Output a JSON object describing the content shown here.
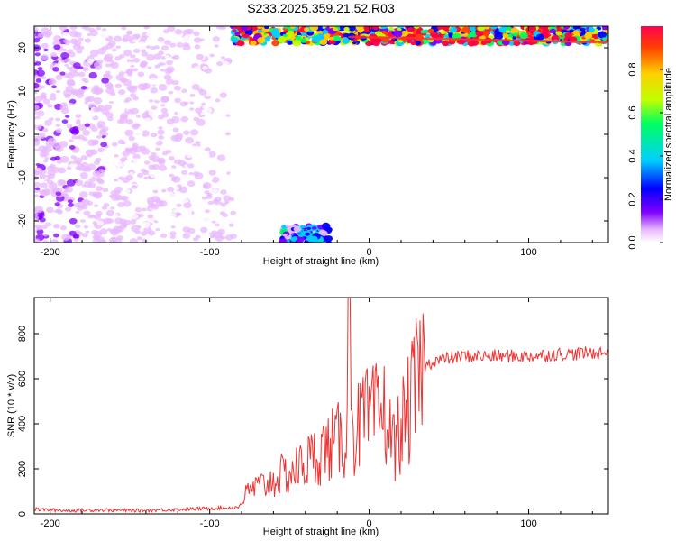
{
  "figure_title": "S233.2025.359.21.52.R03",
  "chart_data": [
    {
      "type": "heatmap",
      "title": "",
      "xlabel": "Height of straight line (km)",
      "ylabel": "Frequency (Hz)",
      "xlim": [
        -210,
        150
      ],
      "ylim": [
        -25,
        25
      ],
      "xticks": [
        -200,
        -100,
        0,
        100
      ],
      "yticks": [
        -20,
        -10,
        0,
        10,
        20
      ],
      "colorbar": {
        "label": "Normalized spectral amplitude",
        "range": [
          0,
          1
        ],
        "ticks": [
          "0.0",
          "0.2",
          "0.4",
          "0.6",
          "0.8"
        ],
        "colors": [
          "#ffffff",
          "#e8b8ff",
          "#8000ff",
          "#0000ff",
          "#00d0ff",
          "#00ff60",
          "#c0ff00",
          "#ffd000",
          "#ff4000",
          "#ff0040"
        ]
      },
      "regions": [
        {
          "name": "noise",
          "x": [
            -210,
            -85
          ],
          "y": [
            -25,
            25
          ],
          "amplitude": 0.1
        },
        {
          "name": "high-frequency band",
          "x": [
            -85,
            150
          ],
          "y": [
            21,
            25
          ],
          "amplitude": 0.8
        },
        {
          "name": "aliased low band",
          "x": [
            -55,
            -25
          ],
          "y": [
            -25,
            -21
          ],
          "amplitude": 0.35
        }
      ]
    },
    {
      "type": "line",
      "title": "",
      "xlabel": "Height of straight line (km)",
      "ylabel": "SNR (10 * v/v)",
      "xlim": [
        -210,
        150
      ],
      "ylim": [
        0,
        960
      ],
      "xticks": [
        -200,
        -100,
        0,
        100
      ],
      "yticks": [
        0,
        200,
        400,
        600,
        800
      ],
      "color": "#ee3333",
      "series": [
        {
          "x": [
            -210,
            -200,
            -190,
            -180,
            -170,
            -160,
            -150,
            -140,
            -130,
            -120,
            -110,
            -100,
            -90,
            -82,
            -78,
            -74,
            -70,
            -65,
            -60,
            -55,
            -50,
            -45,
            -40,
            -35,
            -30,
            -25,
            -20,
            -15,
            -12,
            -10,
            -8,
            -5,
            0,
            5,
            10,
            15,
            20,
            25,
            30,
            35,
            40,
            50,
            60,
            70,
            80,
            90,
            100,
            110,
            120,
            130,
            140,
            150
          ],
          "values": [
            20,
            18,
            15,
            16,
            18,
            17,
            15,
            16,
            18,
            20,
            22,
            25,
            27,
            30,
            80,
            110,
            120,
            130,
            150,
            170,
            180,
            200,
            230,
            250,
            280,
            300,
            320,
            330,
            960,
            350,
            360,
            420,
            420,
            440,
            450,
            300,
            380,
            460,
            580,
            650,
            680,
            690,
            700,
            700,
            700,
            700,
            700,
            705,
            710,
            710,
            715,
            715
          ]
        }
      ]
    }
  ]
}
